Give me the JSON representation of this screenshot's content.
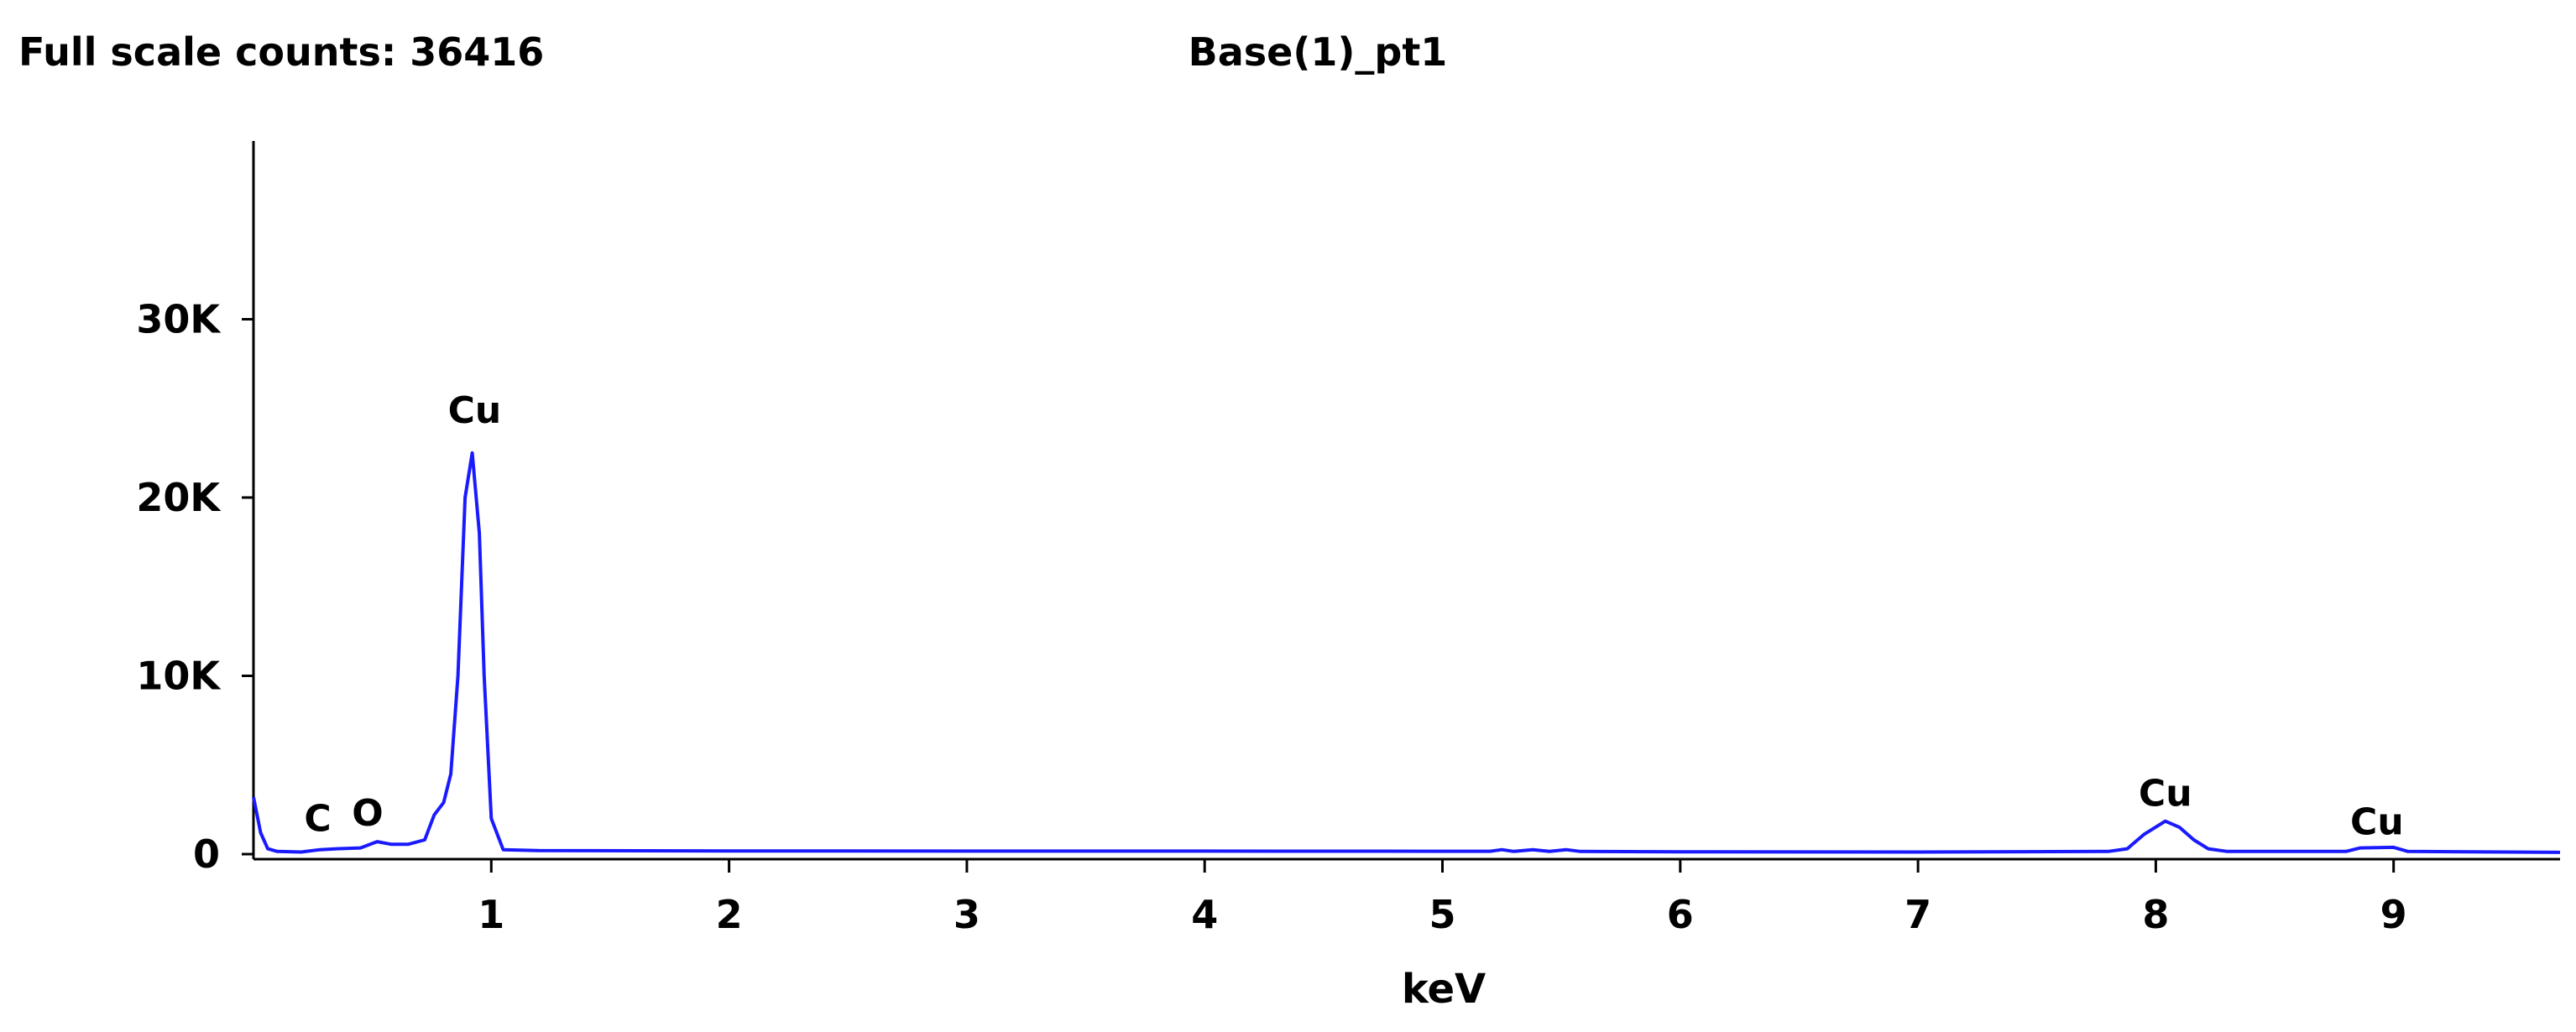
{
  "header": {
    "full_scale": "Full scale counts: 36416",
    "title": "Base(1)_pt1"
  },
  "chart_data": {
    "type": "line",
    "title": "Base(1)_pt1",
    "xlabel": "keV",
    "ylabel": "",
    "xlim": [
      0.0,
      9.7
    ],
    "ylim": [
      0,
      40000
    ],
    "grid": false,
    "x_ticks": [
      1,
      2,
      3,
      4,
      5,
      6,
      7,
      8,
      9
    ],
    "y_ticks": [
      {
        "value": 0,
        "label": "0"
      },
      {
        "value": 10000,
        "label": "10K"
      },
      {
        "value": 20000,
        "label": "20K"
      },
      {
        "value": 30000,
        "label": "30K"
      }
    ],
    "series": [
      {
        "color": "#1a1aff",
        "points": [
          [
            0.0,
            3200
          ],
          [
            0.03,
            1200
          ],
          [
            0.06,
            300
          ],
          [
            0.1,
            150
          ],
          [
            0.2,
            120
          ],
          [
            0.28,
            250
          ],
          [
            0.35,
            300
          ],
          [
            0.45,
            350
          ],
          [
            0.52,
            700
          ],
          [
            0.58,
            550
          ],
          [
            0.65,
            550
          ],
          [
            0.72,
            800
          ],
          [
            0.76,
            2200
          ],
          [
            0.8,
            2900
          ],
          [
            0.83,
            4500
          ],
          [
            0.86,
            10000
          ],
          [
            0.89,
            20000
          ],
          [
            0.92,
            22500
          ],
          [
            0.95,
            18000
          ],
          [
            0.97,
            10000
          ],
          [
            1.0,
            2000
          ],
          [
            1.05,
            250
          ],
          [
            1.2,
            200
          ],
          [
            2.0,
            180
          ],
          [
            3.0,
            170
          ],
          [
            4.0,
            170
          ],
          [
            5.0,
            160
          ],
          [
            5.2,
            160
          ],
          [
            5.25,
            250
          ],
          [
            5.3,
            150
          ],
          [
            5.38,
            250
          ],
          [
            5.45,
            150
          ],
          [
            5.52,
            250
          ],
          [
            5.58,
            150
          ],
          [
            6.0,
            130
          ],
          [
            7.0,
            120
          ],
          [
            7.8,
            150
          ],
          [
            7.88,
            300
          ],
          [
            7.95,
            1100
          ],
          [
            8.04,
            1850
          ],
          [
            8.1,
            1500
          ],
          [
            8.16,
            800
          ],
          [
            8.22,
            300
          ],
          [
            8.3,
            150
          ],
          [
            8.8,
            150
          ],
          [
            8.86,
            350
          ],
          [
            9.0,
            380
          ],
          [
            9.06,
            150
          ],
          [
            9.7,
            100
          ]
        ]
      }
    ],
    "peak_labels": [
      {
        "text": "C",
        "x": 0.27,
        "y": 1300
      },
      {
        "text": "O",
        "x": 0.48,
        "y": 1600
      },
      {
        "text": "Cu",
        "x": 0.93,
        "y": 24200
      },
      {
        "text": "Cu",
        "x": 8.04,
        "y": 2700
      },
      {
        "text": "Cu",
        "x": 8.93,
        "y": 1100
      }
    ]
  }
}
